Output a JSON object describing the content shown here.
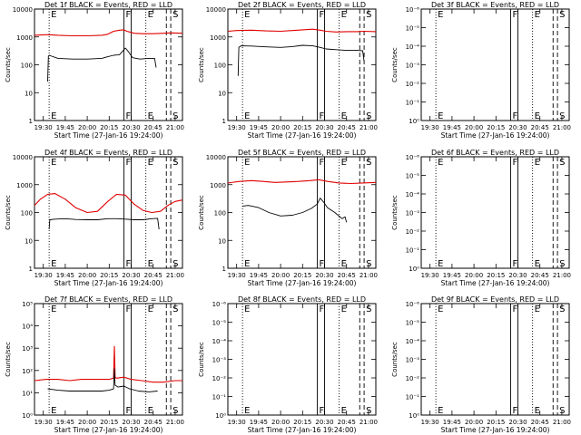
{
  "figure": {
    "xlabel": "Start Time (27-Jan-16 19:24:00)",
    "ylabel": "Counts/sec",
    "colors": {
      "events": "#000000",
      "lld": "#e00000"
    }
  },
  "chart_data": [
    {
      "type": "line",
      "title": "Det 1f BLACK = Events, RED = LLD",
      "xlabel": "Start Time (27-Jan-16 19:24:00)",
      "ylabel": "Counts/sec",
      "scale": "log",
      "xlim": [
        "19:24",
        "21:05"
      ],
      "xticks": [
        "19:30",
        "19:45",
        "20:00",
        "20:15",
        "20:30",
        "20:45",
        "21:00"
      ],
      "ylim": [
        1,
        10000
      ],
      "yticks": [
        "1",
        "10",
        "100",
        "1000",
        "10000"
      ],
      "markers": [
        {
          "kind": "dotted",
          "time": "19:34",
          "label": "E"
        },
        {
          "kind": "solid",
          "time": "20:25",
          "label": "F"
        },
        {
          "kind": "solid",
          "time": "20:30",
          "label": ""
        },
        {
          "kind": "dotted",
          "time": "20:40",
          "label": "E"
        },
        {
          "kind": "dashed",
          "time": "20:54",
          "label": ""
        },
        {
          "kind": "dashed",
          "time": "20:57",
          "label": "S"
        }
      ],
      "series": [
        {
          "name": "LLD",
          "color": "red",
          "x": [
            "19:24",
            "19:32",
            "19:34",
            "19:40",
            "19:50",
            "20:00",
            "20:10",
            "20:14",
            "20:18",
            "20:22",
            "20:25",
            "20:27",
            "20:29",
            "20:32",
            "20:38",
            "20:45",
            "20:52",
            "20:57",
            "21:05"
          ],
          "y": [
            1150,
            1200,
            1200,
            1150,
            1100,
            1100,
            1150,
            1250,
            1600,
            1750,
            1800,
            1600,
            1500,
            1350,
            1300,
            1300,
            1350,
            1400,
            1350
          ]
        },
        {
          "name": "Events",
          "color": "black",
          "x": [
            "19:33",
            "19:33.5",
            "19:34",
            "19:40",
            "19:50",
            "20:00",
            "20:10",
            "20:14",
            "20:18",
            "20:22",
            "20:24",
            "20:26",
            "20:28",
            "20:31",
            "20:36",
            "20:42",
            "20:46",
            "20:47"
          ],
          "y": [
            25,
            200,
            220,
            170,
            160,
            160,
            170,
            195,
            220,
            230,
            300,
            400,
            300,
            180,
            160,
            170,
            170,
            80
          ]
        }
      ]
    },
    {
      "type": "line",
      "title": "Det 2f BLACK = Events, RED = LLD",
      "xlabel": "Start Time (27-Jan-16 19:24:00)",
      "ylabel": "Counts/sec",
      "scale": "log",
      "xlim": [
        "19:24",
        "21:05"
      ],
      "xticks": [
        "19:30",
        "19:45",
        "20:00",
        "20:15",
        "20:30",
        "20:45",
        "21:00"
      ],
      "ylim": [
        1,
        10000
      ],
      "yticks": [
        "1",
        "10",
        "100",
        "1000",
        "10000"
      ],
      "markers": [
        {
          "kind": "dotted",
          "time": "19:34",
          "label": "E"
        },
        {
          "kind": "solid",
          "time": "20:25",
          "label": "F"
        },
        {
          "kind": "solid",
          "time": "20:30",
          "label": ""
        },
        {
          "kind": "dotted",
          "time": "20:40",
          "label": "E"
        },
        {
          "kind": "dashed",
          "time": "20:54",
          "label": ""
        },
        {
          "kind": "dashed",
          "time": "20:57",
          "label": "S"
        }
      ],
      "series": [
        {
          "name": "LLD",
          "color": "red",
          "x": [
            "19:24",
            "19:30",
            "19:40",
            "19:50",
            "20:00",
            "20:08",
            "20:15",
            "20:22",
            "20:27",
            "20:31",
            "20:38",
            "20:45",
            "20:52",
            "20:57",
            "21:05"
          ],
          "y": [
            1600,
            1700,
            1750,
            1650,
            1600,
            1700,
            1800,
            1900,
            1750,
            1600,
            1500,
            1550,
            1550,
            1600,
            1550
          ]
        },
        {
          "name": "Events",
          "color": "black",
          "x": [
            "19:31",
            "19:31.5",
            "19:33",
            "19:40",
            "19:50",
            "20:00",
            "20:08",
            "20:15",
            "20:22",
            "20:27",
            "20:31",
            "20:38",
            "20:45",
            "20:52",
            "20:56",
            "20:57"
          ],
          "y": [
            40,
            420,
            480,
            470,
            440,
            420,
            450,
            500,
            480,
            420,
            370,
            350,
            330,
            330,
            320,
            130
          ]
        }
      ]
    },
    {
      "type": "line",
      "title": "Det 3f BLACK = Events, RED = LLD",
      "xlabel": "Start Time (27-Jan-16 19:24:00)",
      "ylabel": "Counts/sec",
      "scale": "log",
      "xlim": [
        "19:24",
        "21:05"
      ],
      "xticks": [
        "19:30",
        "19:45",
        "20:00",
        "20:15",
        "20:30",
        "20:45",
        "21:00"
      ],
      "ylim": [
        1,
        1e-06
      ],
      "yticks": [
        "10⁰",
        "10⁻¹",
        "10⁻²",
        "10⁻³",
        "10⁻⁴",
        "10⁻⁵",
        "10⁻⁶"
      ],
      "markers": [
        {
          "kind": "dotted",
          "time": "19:34",
          "label": "E"
        },
        {
          "kind": "solid",
          "time": "20:25",
          "label": "F"
        },
        {
          "kind": "solid",
          "time": "20:30",
          "label": ""
        },
        {
          "kind": "dotted",
          "time": "20:40",
          "label": "E"
        },
        {
          "kind": "dashed",
          "time": "20:54",
          "label": ""
        },
        {
          "kind": "dashed",
          "time": "20:57",
          "label": "S"
        }
      ],
      "series": []
    },
    {
      "type": "line",
      "title": "Det 4f BLACK = Events, RED = LLD",
      "xlabel": "Start Time (27-Jan-16 19:24:00)",
      "ylabel": "Counts/sec",
      "scale": "log",
      "xlim": [
        "19:24",
        "21:05"
      ],
      "xticks": [
        "19:30",
        "19:45",
        "20:00",
        "20:15",
        "20:30",
        "20:45",
        "21:00"
      ],
      "ylim": [
        1,
        10000
      ],
      "yticks": [
        "1",
        "10",
        "100",
        "1000",
        "10000"
      ],
      "markers": [
        {
          "kind": "dotted",
          "time": "19:34",
          "label": "E"
        },
        {
          "kind": "solid",
          "time": "20:25",
          "label": "F"
        },
        {
          "kind": "solid",
          "time": "20:30",
          "label": ""
        },
        {
          "kind": "dotted",
          "time": "20:40",
          "label": "E"
        },
        {
          "kind": "dashed",
          "time": "20:54",
          "label": ""
        },
        {
          "kind": "dashed",
          "time": "20:57",
          "label": "S"
        }
      ],
      "series": [
        {
          "name": "LLD",
          "color": "red",
          "x": [
            "19:24",
            "19:28",
            "19:33",
            "19:38",
            "19:45",
            "19:52",
            "20:00",
            "20:07",
            "20:14",
            "20:20",
            "20:26",
            "20:32",
            "20:38",
            "20:44",
            "20:50",
            "20:55",
            "21:00",
            "21:05"
          ],
          "y": [
            180,
            300,
            450,
            480,
            300,
            150,
            100,
            110,
            250,
            450,
            420,
            200,
            120,
            100,
            110,
            180,
            250,
            280
          ]
        },
        {
          "name": "Events",
          "color": "black",
          "x": [
            "19:34",
            "19:34.5",
            "19:38",
            "19:45",
            "19:52",
            "20:00",
            "20:07",
            "20:14",
            "20:20",
            "20:26",
            "20:32",
            "20:38",
            "20:44",
            "20:48",
            "20:49"
          ],
          "y": [
            25,
            55,
            58,
            60,
            56,
            55,
            55,
            60,
            60,
            58,
            55,
            55,
            60,
            62,
            25
          ]
        }
      ]
    },
    {
      "type": "line",
      "title": "Det 5f BLACK = Events, RED = LLD",
      "xlabel": "Start Time (27-Jan-16 19:24:00)",
      "ylabel": "Counts/sec",
      "scale": "log",
      "xlim": [
        "19:24",
        "21:05"
      ],
      "xticks": [
        "19:30",
        "19:45",
        "20:00",
        "20:15",
        "20:30",
        "20:45",
        "21:00"
      ],
      "ylim": [
        1,
        10000
      ],
      "yticks": [
        "1",
        "10",
        "100",
        "1000",
        "10000"
      ],
      "markers": [
        {
          "kind": "dotted",
          "time": "19:34",
          "label": "E"
        },
        {
          "kind": "solid",
          "time": "20:25",
          "label": "F"
        },
        {
          "kind": "solid",
          "time": "20:30",
          "label": ""
        },
        {
          "kind": "dotted",
          "time": "20:40",
          "label": "E"
        },
        {
          "kind": "dashed",
          "time": "20:54",
          "label": ""
        },
        {
          "kind": "dashed",
          "time": "20:57",
          "label": "S"
        }
      ],
      "series": [
        {
          "name": "LLD",
          "color": "red",
          "x": [
            "19:24",
            "19:32",
            "19:40",
            "19:48",
            "19:56",
            "20:04",
            "20:12",
            "20:20",
            "20:26",
            "20:32",
            "20:40",
            "20:48",
            "20:56",
            "21:05"
          ],
          "y": [
            1150,
            1300,
            1400,
            1300,
            1200,
            1250,
            1300,
            1400,
            1500,
            1300,
            1150,
            1100,
            1150,
            1200
          ]
        },
        {
          "name": "Events",
          "color": "black",
          "x": [
            "19:34",
            "19:38",
            "19:45",
            "19:52",
            "20:00",
            "20:08",
            "20:15",
            "20:21",
            "20:25",
            "20:27",
            "20:29",
            "20:32",
            "20:37",
            "20:42",
            "20:44",
            "20:45"
          ],
          "y": [
            170,
            180,
            150,
            100,
            75,
            80,
            100,
            140,
            200,
            330,
            250,
            150,
            100,
            60,
            70,
            45
          ]
        }
      ]
    },
    {
      "type": "line",
      "title": "Det 6f BLACK = Events, RED = LLD",
      "xlabel": "Start Time (27-Jan-16 19:24:00)",
      "ylabel": "Counts/sec",
      "scale": "log",
      "xlim": [
        "19:24",
        "21:05"
      ],
      "xticks": [
        "19:30",
        "19:45",
        "20:00",
        "20:15",
        "20:30",
        "20:45",
        "21:00"
      ],
      "ylim": [
        1,
        1e-06
      ],
      "yticks": [
        "10⁰",
        "10⁻¹",
        "10⁻²",
        "10⁻³",
        "10⁻⁴",
        "10⁻⁵",
        "10⁻⁶"
      ],
      "markers": [
        {
          "kind": "dotted",
          "time": "19:34",
          "label": "E"
        },
        {
          "kind": "solid",
          "time": "20:25",
          "label": "F"
        },
        {
          "kind": "solid",
          "time": "20:30",
          "label": ""
        },
        {
          "kind": "dotted",
          "time": "20:40",
          "label": "E"
        },
        {
          "kind": "dashed",
          "time": "20:54",
          "label": ""
        },
        {
          "kind": "dashed",
          "time": "20:57",
          "label": "S"
        }
      ],
      "series": []
    },
    {
      "type": "line",
      "title": "Det 7f BLACK = Events, RED = LLD",
      "xlabel": "Start Time (27-Jan-16 19:24:00)",
      "ylabel": "Counts/sec",
      "scale": "log",
      "xlim": [
        "19:24",
        "21:05"
      ],
      "xticks": [
        "19:30",
        "19:45",
        "20:00",
        "20:15",
        "20:30",
        "20:45",
        "21:00"
      ],
      "ylim": [
        1,
        100000
      ],
      "yticks": [
        "10⁰",
        "10¹",
        "10²",
        "10³",
        "10⁴",
        "10⁵"
      ],
      "markers": [
        {
          "kind": "dotted",
          "time": "19:34",
          "label": "E"
        },
        {
          "kind": "solid",
          "time": "20:25",
          "label": "F"
        },
        {
          "kind": "solid",
          "time": "20:30",
          "label": ""
        },
        {
          "kind": "dotted",
          "time": "20:40",
          "label": "E"
        },
        {
          "kind": "dashed",
          "time": "20:54",
          "label": ""
        },
        {
          "kind": "dashed",
          "time": "20:57",
          "label": "S"
        }
      ],
      "series": [
        {
          "name": "LLD",
          "color": "red",
          "x": [
            "19:24",
            "19:32",
            "19:40",
            "19:48",
            "19:56",
            "20:04",
            "20:10",
            "20:15",
            "20:18",
            "20:18.5",
            "20:19",
            "20:20",
            "20:25",
            "20:30",
            "20:37",
            "20:45",
            "20:52",
            "21:00",
            "21:05"
          ],
          "y": [
            35,
            40,
            40,
            35,
            40,
            40,
            40,
            40,
            45,
            1200,
            50,
            45,
            50,
            40,
            35,
            30,
            30,
            35,
            35
          ]
        },
        {
          "name": "Events",
          "color": "black",
          "x": [
            "19:33",
            "19:40",
            "19:48",
            "19:56",
            "20:04",
            "20:10",
            "20:15",
            "20:18",
            "20:18.5",
            "20:19",
            "20:21",
            "20:25",
            "20:29",
            "20:35",
            "20:42",
            "20:48"
          ],
          "y": [
            15,
            13,
            12,
            12,
            12,
            12,
            13,
            15,
            120,
            22,
            18,
            20,
            15,
            12,
            11,
            12
          ]
        }
      ]
    },
    {
      "type": "line",
      "title": "Det 8f BLACK = Events, RED = LLD",
      "xlabel": "Start Time (27-Jan-16 19:24:00)",
      "ylabel": "Counts/sec",
      "scale": "log",
      "xlim": [
        "19:24",
        "21:05"
      ],
      "xticks": [
        "19:30",
        "19:45",
        "20:00",
        "20:15",
        "20:30",
        "20:45",
        "21:00"
      ],
      "ylim": [
        1,
        1e-06
      ],
      "yticks": [
        "10⁰",
        "10⁻¹",
        "10⁻²",
        "10⁻³",
        "10⁻⁴",
        "10⁻⁵",
        "10⁻⁶"
      ],
      "markers": [
        {
          "kind": "dotted",
          "time": "19:34",
          "label": "E"
        },
        {
          "kind": "solid",
          "time": "20:25",
          "label": "F"
        },
        {
          "kind": "solid",
          "time": "20:30",
          "label": ""
        },
        {
          "kind": "dotted",
          "time": "20:40",
          "label": "E"
        },
        {
          "kind": "dashed",
          "time": "20:54",
          "label": ""
        },
        {
          "kind": "dashed",
          "time": "20:57",
          "label": "S"
        }
      ],
      "series": []
    },
    {
      "type": "line",
      "title": "Det 9f BLACK = Events, RED = LLD",
      "xlabel": "Start Time (27-Jan-16 19:24:00)",
      "ylabel": "Counts/sec",
      "scale": "log",
      "xlim": [
        "19:24",
        "21:05"
      ],
      "xticks": [
        "19:30",
        "19:45",
        "20:00",
        "20:15",
        "20:30",
        "20:45",
        "21:00"
      ],
      "ylim": [
        1,
        1e-06
      ],
      "yticks": [
        "10⁰",
        "10⁻¹",
        "10⁻²",
        "10⁻³",
        "10⁻⁴",
        "10⁻⁵",
        "10⁻⁶"
      ],
      "markers": [
        {
          "kind": "dotted",
          "time": "19:34",
          "label": "E"
        },
        {
          "kind": "solid",
          "time": "20:25",
          "label": "F"
        },
        {
          "kind": "solid",
          "time": "20:30",
          "label": ""
        },
        {
          "kind": "dotted",
          "time": "20:40",
          "label": "E"
        },
        {
          "kind": "dashed",
          "time": "20:54",
          "label": ""
        },
        {
          "kind": "dashed",
          "time": "20:57",
          "label": "S"
        }
      ],
      "series": []
    }
  ]
}
